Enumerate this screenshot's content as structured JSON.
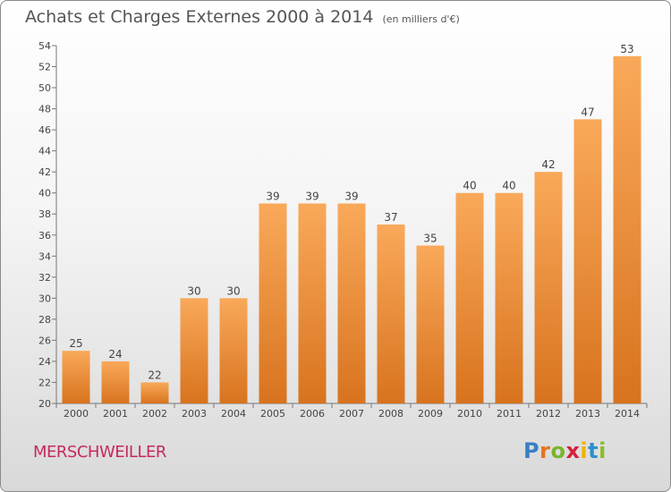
{
  "header": {
    "title": "Achats et Charges Externes 2000 à 2014",
    "unit": "(en milliers d'€)"
  },
  "footer": {
    "city": "MERSCHWEILLER",
    "logo_letters": [
      "P",
      "r",
      "o",
      "x",
      "i",
      "t",
      "i"
    ],
    "logo_colors": [
      "#3a7fc4",
      "#e8731c",
      "#7ab52c",
      "#d4213d",
      "#f0b400",
      "#2d8fcf",
      "#8bbd2a"
    ]
  },
  "colors": {
    "bar_light": "#f9a95a",
    "bar_dark": "#d8731e",
    "axis": "#777777",
    "text": "#444444"
  },
  "chart_data": {
    "type": "bar",
    "title": "Achats et Charges Externes 2000 à 2014",
    "xlabel": "",
    "ylabel": "",
    "categories": [
      "2000",
      "2001",
      "2002",
      "2003",
      "2004",
      "2005",
      "2006",
      "2007",
      "2008",
      "2009",
      "2010",
      "2011",
      "2012",
      "2013",
      "2014"
    ],
    "values": [
      25,
      24,
      22,
      30,
      30,
      39,
      39,
      39,
      37,
      35,
      40,
      40,
      42,
      47,
      53
    ],
    "ylim": [
      20,
      54
    ],
    "yticks": [
      20,
      22,
      24,
      26,
      28,
      30,
      32,
      34,
      36,
      38,
      40,
      42,
      44,
      46,
      48,
      50,
      52,
      54
    ],
    "data_labels": true,
    "grid": false,
    "legend": "none"
  }
}
